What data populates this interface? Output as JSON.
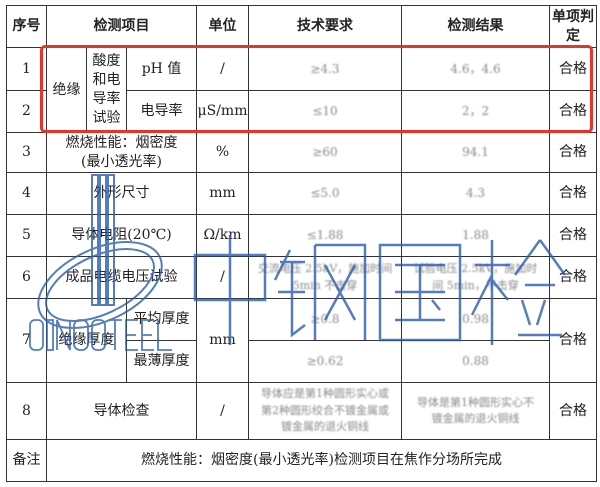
{
  "header": {
    "seq": "序号",
    "item": "检测项目",
    "unit": "单位",
    "requirement": "技术要求",
    "result": "检测结果",
    "verdict": "单项判定"
  },
  "rows": {
    "r1": {
      "seq": "1",
      "group": "绝缘",
      "subgroup": "酸度和电导率试验",
      "item": "pH 值",
      "unit": "/",
      "requirement": "≥4.3",
      "result": "4.6，4.6",
      "verdict": "合格"
    },
    "r2": {
      "seq": "2",
      "item": "电导率",
      "unit": "μS/mm",
      "requirement": "≤10",
      "result": "2，2",
      "verdict": "合格"
    },
    "r3": {
      "seq": "3",
      "item": "燃烧性能：烟密度(最小透光率)",
      "unit": "%",
      "requirement": "≥60",
      "result": "94.1",
      "verdict": "合格"
    },
    "r4": {
      "seq": "4",
      "item": "外形尺寸",
      "unit": "mm",
      "requirement": "≤5.0",
      "result": "4.3",
      "verdict": "合格"
    },
    "r5": {
      "seq": "5",
      "item": "导体电阻(20℃)",
      "unit": "Ω/km",
      "requirement": "≤1.88",
      "result": "1.88",
      "verdict": "合格"
    },
    "r6": {
      "seq": "6",
      "item": "成品电缆电压试验",
      "unit": "/",
      "requirement": "交流电压 2.5kV，施加时间 5min 不击穿",
      "result": "试验电压 2.5kV，施加时间 5min，不击穿",
      "verdict": "合格"
    },
    "r7": {
      "seq": "7",
      "item": "绝缘厚度",
      "unit": "mm",
      "sub1": "平均厚度",
      "req1": "≥0.8",
      "res1": "0.98",
      "sub2": "最薄厚度",
      "req2": "≥0.62",
      "res2": "0.88",
      "verdict": "合格"
    },
    "r8": {
      "seq": "8",
      "item": "导体检查",
      "unit": "/",
      "requirement": "导体应是第1种圆形实心或第2种圆形绞合不镀金属或镀金属的退火铜线",
      "result": "导体是第1种圆形实心不镀金属的退火铜线",
      "verdict": "合格"
    }
  },
  "remark": {
    "label": "备注",
    "text": "燃烧性能：烟密度(最小透光率)检测项目在焦作分场所完成"
  },
  "watermark": {
    "cn": "中钢国检",
    "en": "SINOSTEEL",
    "color": "#2a5db0"
  },
  "highlight_color": "#e8322a"
}
